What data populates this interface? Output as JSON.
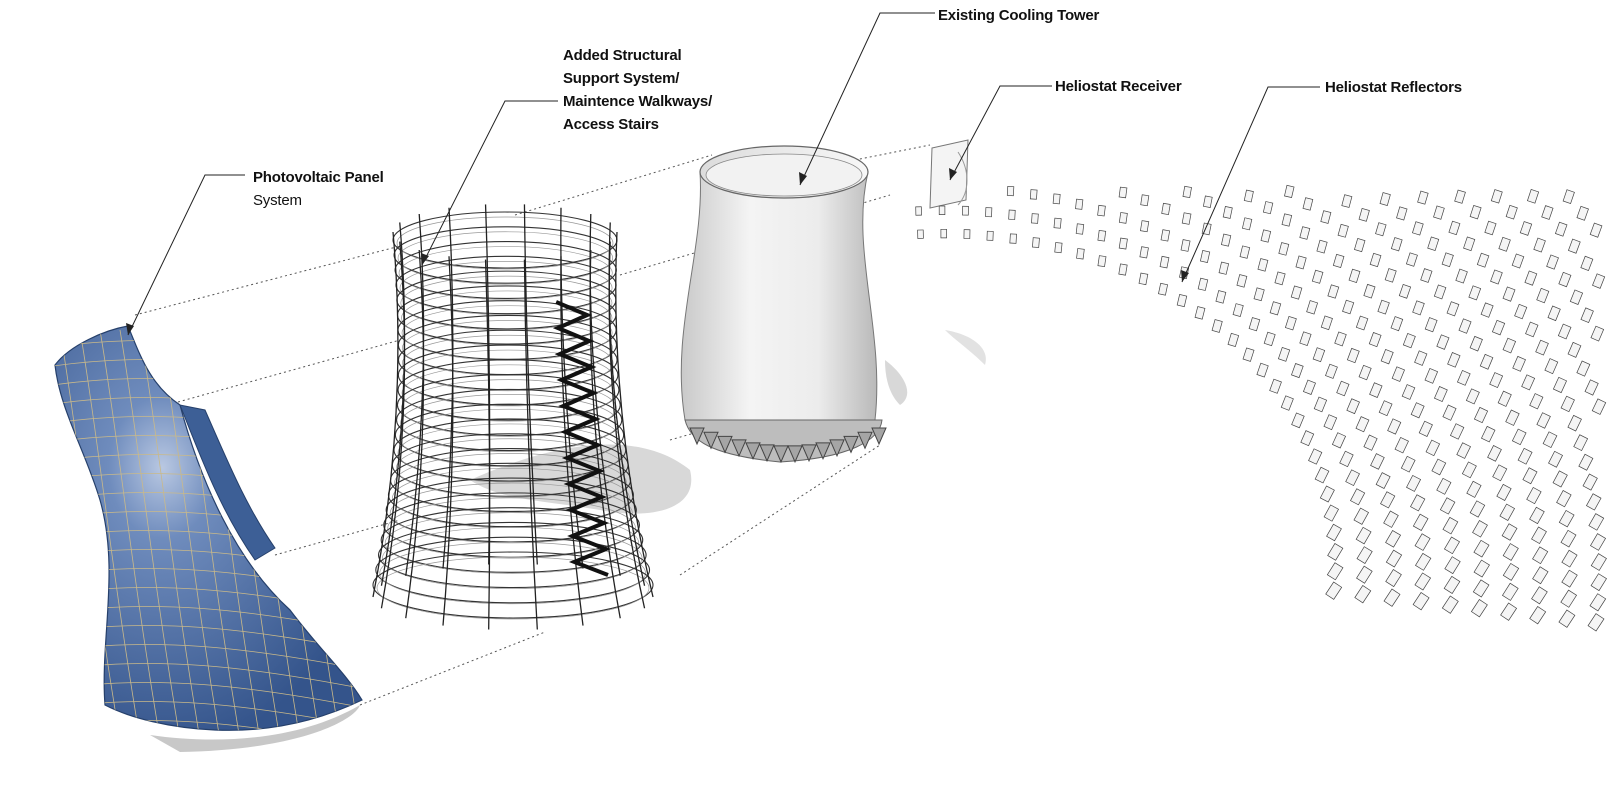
{
  "labels": {
    "pv_line1": "Photovoltaic Panel",
    "pv_line2": "System",
    "struct_line1": "Added Structural",
    "struct_line2": "Support System/",
    "struct_line3_bold": "Maintence",
    "struct_line3_rest": " Walkways/",
    "struct_line4": "Access Stairs",
    "tower": "Existing Cooling Tower",
    "receiver": "Heliostat Receiver",
    "reflectors": "Heliostat Reflectors"
  },
  "colors": {
    "pv_panel": "#3d5f96",
    "pv_panel_light": "#8fa6cc",
    "grid_line": "#c9b98a",
    "tower_fill": "#e8e8e8",
    "shadow": "#cfcfcf",
    "stair": "#111111"
  }
}
